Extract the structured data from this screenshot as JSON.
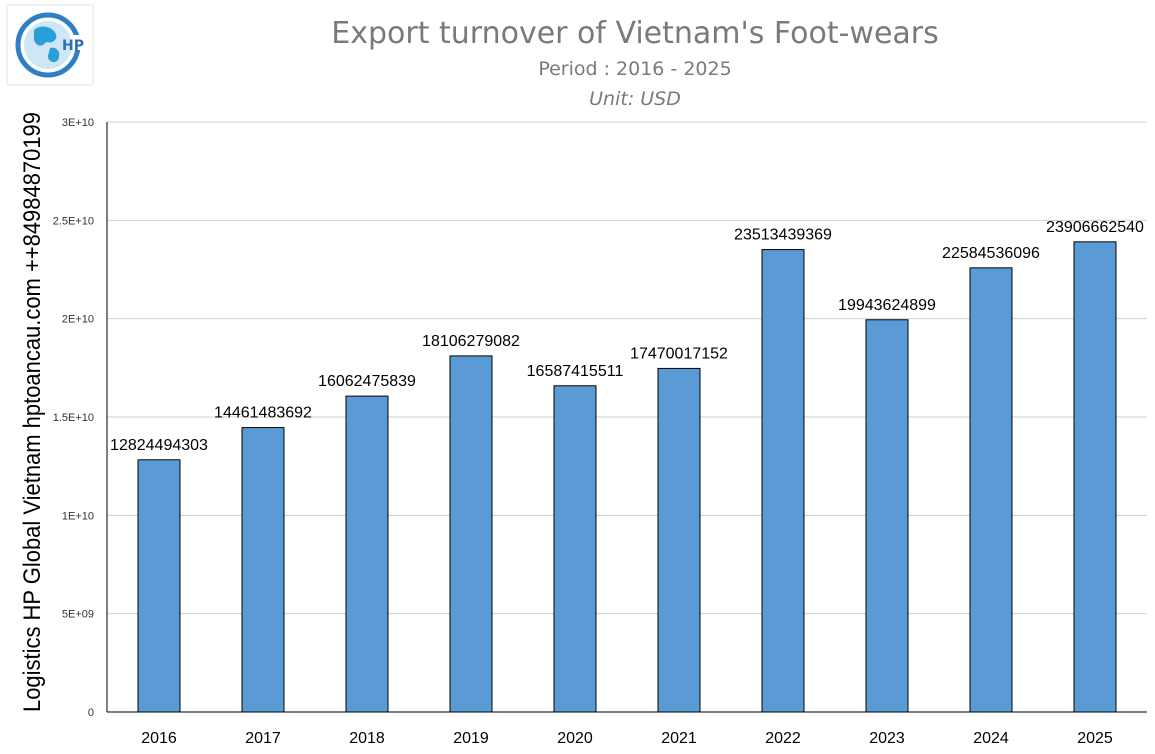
{
  "logo": {
    "text": "HP"
  },
  "side_text": "Logistics HP Global Vietnam hptoancau.com ++84984870199",
  "colors": {
    "bar": "#5b9bd5",
    "grid": "#d0d0d0",
    "title": "#7a7a7a"
  },
  "chart_data": {
    "type": "bar",
    "title": "Export turnover of Vietnam's Foot-wears",
    "subtitle": "Period : 2016 - 2025",
    "unit": "Unit: USD",
    "xlabel": "",
    "ylabel": "",
    "categories": [
      "2016",
      "2017",
      "2018",
      "2019",
      "2020",
      "2021",
      "2022",
      "2023",
      "2024",
      "2025"
    ],
    "values": [
      12824494303,
      14461483692,
      16062475839,
      18106279082,
      16587415511,
      17470017152,
      23513439369,
      19943624899,
      22584536096,
      23906662540
    ],
    "data_labels": [
      "12824494303",
      "14461483692",
      "16062475839",
      "18106279082",
      "16587415511",
      "17470017152",
      "23513439369",
      "19943624899",
      "22584536096",
      "23906662540"
    ],
    "ylim": [
      0,
      30000000000
    ],
    "yticks": [
      0,
      5000000000,
      10000000000,
      15000000000,
      20000000000,
      25000000000,
      30000000000
    ],
    "ytick_labels": [
      "0",
      "5E+09",
      "1E+10",
      "1.5E+10",
      "2E+10",
      "2.5E+10",
      "3E+10"
    ],
    "grid": true,
    "legend": "none"
  }
}
